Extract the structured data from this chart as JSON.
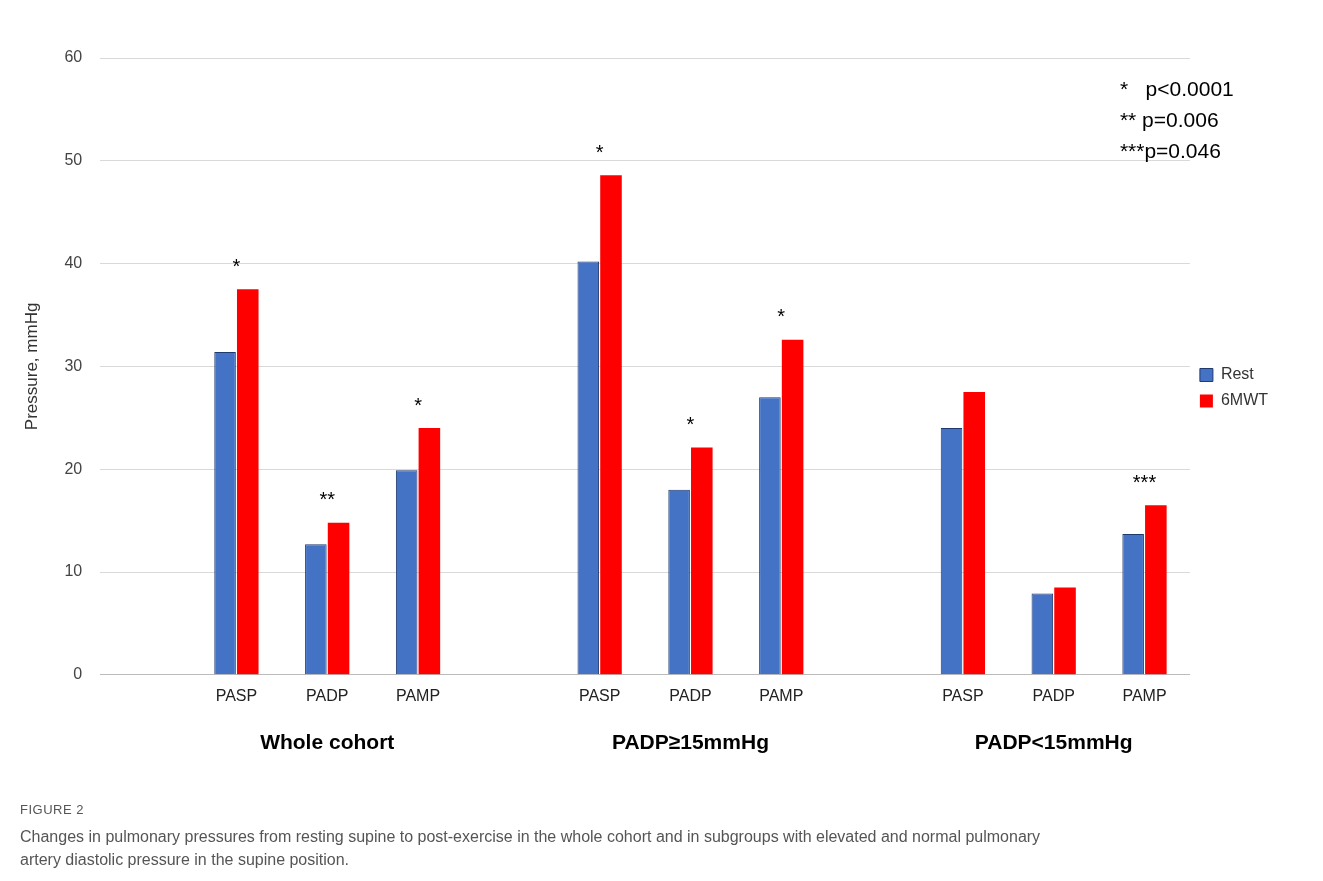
{
  "chart_data": {
    "type": "bar",
    "ylabel": "Pressure, mmHg",
    "categories": [
      null,
      "PASP",
      "PADP",
      "PAMP",
      null,
      "PASP",
      "PADP",
      "PAMP",
      null,
      "PASP",
      "PADP",
      "PAMP"
    ],
    "series": [
      {
        "name": "Rest",
        "color": "#4472c4",
        "values": [
          null,
          31.4,
          12.7,
          19.9,
          null,
          40.2,
          18.0,
          27.0,
          null,
          24.0,
          7.9,
          13.7
        ]
      },
      {
        "name": "6MWT",
        "color": "#ff0000",
        "values": [
          null,
          37.5,
          14.8,
          24.0,
          null,
          48.6,
          22.1,
          32.6,
          null,
          27.5,
          8.5,
          16.5
        ],
        "value_labels": [
          null,
          "*",
          "**",
          "*",
          null,
          "*",
          "*",
          "*",
          null,
          null,
          null,
          "***"
        ]
      }
    ],
    "ylim": [
      0,
      60
    ],
    "yticks": [
      0,
      10,
      20,
      30,
      40,
      50,
      60
    ],
    "grid": "y",
    "legend": "right",
    "annotations": [
      "Whole cohort",
      "PADP≥15mmHg",
      "PADP<15mmHg",
      "*   p<0.0001",
      "** p=0.006",
      "***p=0.046",
      "FIGURE 2",
      "Changes in pulmonary pressures from resting supine to post-exercise in the whole cohort and in subgroups with elevated and normal pulmonary artery diastolic pressure in the supine position."
    ]
  }
}
